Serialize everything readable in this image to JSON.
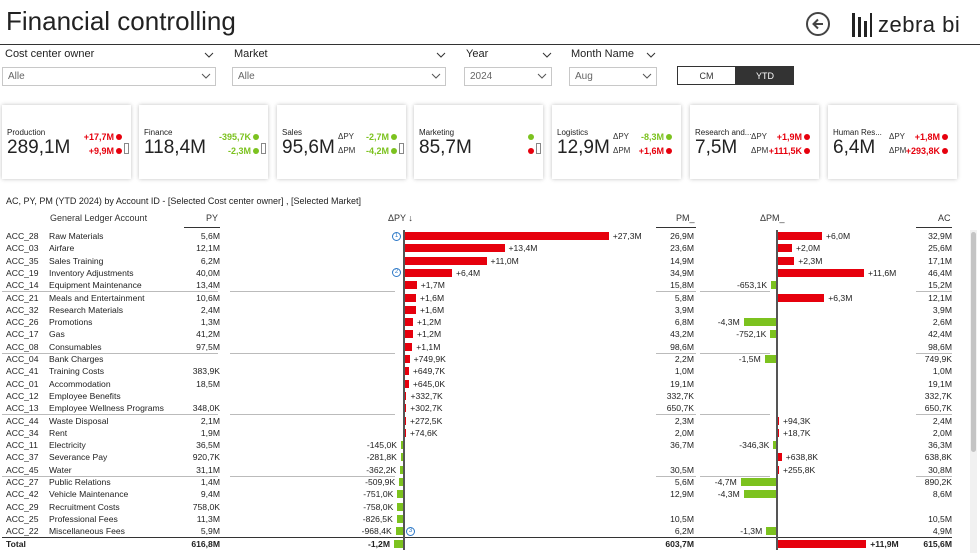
{
  "header": {
    "title": "Financial controlling",
    "logo_text": "zebra bi"
  },
  "filters": [
    {
      "label": "Cost center owner",
      "value": "Alle"
    },
    {
      "label": "Market",
      "value": "Alle"
    },
    {
      "label": "Year",
      "value": "2024"
    },
    {
      "label": "Month Name",
      "value": "Aug"
    }
  ],
  "segments": [
    {
      "label": "CM",
      "active": false
    },
    {
      "label": "YTD",
      "active": true
    }
  ],
  "cards": [
    {
      "name": "Production",
      "value": "289,1M",
      "d1": "+17,7M",
      "d2": "+9,9M",
      "d1_neg": true,
      "d2_neg": true,
      "show_labels": false
    },
    {
      "name": "Finance",
      "value": "118,4M",
      "d1": "-395,7K",
      "d2": "-2,3M",
      "d1_neg": false,
      "d2_neg": false,
      "show_labels": false
    },
    {
      "name": "Sales",
      "value": "95,6M",
      "d1": "-2,7M",
      "d2": "-4,2M",
      "d1_neg": false,
      "d2_neg": false,
      "show_labels": true,
      "l1": "ΔPY",
      "l2": "ΔPM"
    },
    {
      "name": "Marketing",
      "value": "85,7M",
      "d1": "",
      "d2": "",
      "d1_neg": false,
      "d2_neg": true,
      "show_labels": false
    },
    {
      "name": "Logistics",
      "value": "12,9M",
      "d1": "-8,3M",
      "d2": "+1,6M",
      "d1_neg": false,
      "d2_neg": true,
      "show_labels": true,
      "l1": "ΔPY",
      "l2": "ΔPM"
    },
    {
      "name": "Research and...",
      "value": "7,5M",
      "d1": "+1,9M",
      "d2": "+111,5K",
      "d1_neg": true,
      "d2_neg": true,
      "show_labels": true,
      "l1": "ΔPY",
      "l2": "ΔPM"
    },
    {
      "name": "Human Res...",
      "value": "6,4M",
      "d1": "+1,8M",
      "d2": "+293,8K",
      "d1_neg": true,
      "d2_neg": true,
      "show_labels": true,
      "l1": "ΔPY",
      "l2": "ΔPM"
    }
  ],
  "table": {
    "title": "AC, PY, PM (YTD 2024) by Account ID - [Selected Cost center owner] , [Selected Market]",
    "headers": {
      "account": "General Ledger Account",
      "py": "PY",
      "dpy": "ΔPY ↓",
      "pm": "PM_",
      "dpm": "ΔPM_",
      "ac": "AC"
    },
    "rows": [
      {
        "id": "ACC_28",
        "name": "Raw Materials",
        "py": "5,6M",
        "dpy": "+27,3M",
        "dpy_v": 27.3,
        "pm": "26,9M",
        "dpm": "+6,0M",
        "dpm_v": 6.0,
        "ac": "32,9M"
      },
      {
        "id": "ACC_03",
        "name": "Airfare",
        "py": "12,1M",
        "dpy": "+13,4M",
        "dpy_v": 13.4,
        "pm": "23,6M",
        "dpm": "+2,0M",
        "dpm_v": 2.0,
        "ac": "25,6M"
      },
      {
        "id": "ACC_35",
        "name": "Sales Training",
        "py": "6,2M",
        "dpy": "+11,0M",
        "dpy_v": 11.0,
        "pm": "14,9M",
        "dpm": "+2,3M",
        "dpm_v": 2.3,
        "ac": "17,1M"
      },
      {
        "id": "ACC_19",
        "name": "Inventory Adjustments",
        "py": "40,0M",
        "dpy": "+6,4M",
        "dpy_v": 6.4,
        "pm": "34,9M",
        "dpm": "+11,6M",
        "dpm_v": 11.6,
        "ac": "46,4M"
      },
      {
        "id": "ACC_14",
        "name": "Equipment Maintenance",
        "py": "13,4M",
        "dpy": "+1,7M",
        "dpy_v": 1.7,
        "pm": "15,8M",
        "dpm": "-653,1K",
        "dpm_v": -0.653,
        "ac": "15,2M"
      },
      {
        "id": "ACC_21",
        "name": "Meals and Entertainment",
        "py": "10,6M",
        "dpy": "+1,6M",
        "dpy_v": 1.6,
        "pm": "5,8M",
        "dpm": "+6,3M",
        "dpm_v": 6.3,
        "ac": "12,1M"
      },
      {
        "id": "ACC_32",
        "name": "Research Materials",
        "py": "2,4M",
        "dpy": "+1,6M",
        "dpy_v": 1.6,
        "pm": "3,9M",
        "dpm": "",
        "dpm_v": 0,
        "ac": "3,9M"
      },
      {
        "id": "ACC_26",
        "name": "Promotions",
        "py": "1,3M",
        "dpy": "+1,2M",
        "dpy_v": 1.2,
        "pm": "6,8M",
        "dpm": "-4,3M",
        "dpm_v": -4.3,
        "ac": "2,6M"
      },
      {
        "id": "ACC_17",
        "name": "Gas",
        "py": "41,2M",
        "dpy": "+1,2M",
        "dpy_v": 1.2,
        "pm": "43,2M",
        "dpm": "-752,1K",
        "dpm_v": -0.752,
        "ac": "42,4M"
      },
      {
        "id": "ACC_08",
        "name": "Consumables",
        "py": "97,5M",
        "dpy": "+1,1M",
        "dpy_v": 1.1,
        "pm": "98,6M",
        "dpm": "",
        "dpm_v": 0,
        "ac": "98,6M"
      },
      {
        "id": "ACC_04",
        "name": "Bank Charges",
        "py": "",
        "dpy": "+749,9K",
        "dpy_v": 0.75,
        "pm": "2,2M",
        "dpm": "-1,5M",
        "dpm_v": -1.5,
        "ac": "749,9K"
      },
      {
        "id": "ACC_41",
        "name": "Training Costs",
        "py": "383,9K",
        "dpy": "+649,7K",
        "dpy_v": 0.65,
        "pm": "1,0M",
        "dpm": "",
        "dpm_v": 0,
        "ac": "1,0M"
      },
      {
        "id": "ACC_01",
        "name": "Accommodation",
        "py": "18,5M",
        "dpy": "+645,0K",
        "dpy_v": 0.645,
        "pm": "19,1M",
        "dpm": "",
        "dpm_v": 0,
        "ac": "19,1M"
      },
      {
        "id": "ACC_12",
        "name": "Employee Benefits",
        "py": "",
        "dpy": "+332,7K",
        "dpy_v": 0.333,
        "pm": "332,7K",
        "dpm": "",
        "dpm_v": 0,
        "ac": "332,7K"
      },
      {
        "id": "ACC_13",
        "name": "Employee Wellness Programs",
        "py": "348,0K",
        "dpy": "+302,7K",
        "dpy_v": 0.303,
        "pm": "650,7K",
        "dpm": "",
        "dpm_v": 0,
        "ac": "650,7K"
      },
      {
        "id": "ACC_44",
        "name": "Waste Disposal",
        "py": "2,1M",
        "dpy": "+272,5K",
        "dpy_v": 0.273,
        "pm": "2,3M",
        "dpm": "+94,3K",
        "dpm_v": 0.094,
        "ac": "2,4M"
      },
      {
        "id": "ACC_34",
        "name": "Rent",
        "py": "1,9M",
        "dpy": "+74,6K",
        "dpy_v": 0.075,
        "pm": "2,0M",
        "dpm": "+18,7K",
        "dpm_v": 0.019,
        "ac": "2,0M"
      },
      {
        "id": "ACC_11",
        "name": "Electricity",
        "py": "36,5M",
        "dpy": "-145,0K",
        "dpy_v": -0.145,
        "pm": "36,7M",
        "dpm": "-346,3K",
        "dpm_v": -0.346,
        "ac": "36,3M"
      },
      {
        "id": "ACC_37",
        "name": "Severance Pay",
        "py": "920,7K",
        "dpy": "-281,8K",
        "dpy_v": -0.282,
        "pm": "",
        "dpm": "+638,8K",
        "dpm_v": 0.639,
        "ac": "638,8K"
      },
      {
        "id": "ACC_45",
        "name": "Water",
        "py": "31,1M",
        "dpy": "-362,2K",
        "dpy_v": -0.362,
        "pm": "30,5M",
        "dpm": "+255,8K",
        "dpm_v": 0.256,
        "ac": "30,8M"
      },
      {
        "id": "ACC_27",
        "name": "Public Relations",
        "py": "1,4M",
        "dpy": "-509,9K",
        "dpy_v": -0.51,
        "pm": "5,6M",
        "dpm": "-4,7M",
        "dpm_v": -4.7,
        "ac": "890,2K"
      },
      {
        "id": "ACC_42",
        "name": "Vehicle Maintenance",
        "py": "9,4M",
        "dpy": "-751,0K",
        "dpy_v": -0.751,
        "pm": "12,9M",
        "dpm": "-4,3M",
        "dpm_v": -4.3,
        "ac": "8,6M"
      },
      {
        "id": "ACC_29",
        "name": "Recruitment Costs",
        "py": "758,0K",
        "dpy": "-758,0K",
        "dpy_v": -0.758,
        "pm": "",
        "dpm": "",
        "dpm_v": 0,
        "ac": ""
      },
      {
        "id": "ACC_25",
        "name": "Professional Fees",
        "py": "11,3M",
        "dpy": "-826,5K",
        "dpy_v": -0.827,
        "pm": "10,5M",
        "dpm": "",
        "dpm_v": 0,
        "ac": "10,5M"
      },
      {
        "id": "ACC_22",
        "name": "Miscellaneous Fees",
        "py": "5,9M",
        "dpy": "-968,4K",
        "dpy_v": -0.968,
        "pm": "6,2M",
        "dpm": "-1,3M",
        "dpm_v": -1.3,
        "ac": "4,9M"
      }
    ],
    "total": {
      "id": "Total",
      "py": "616,8M",
      "dpy": "-1,2M",
      "dpy_v": -1.2,
      "pm": "603,7M",
      "dpm": "+11,9M",
      "dpm_v": 11.9,
      "ac": "615,6M"
    },
    "markers": [
      {
        "row": 0,
        "label": "1"
      },
      {
        "row": 3,
        "label": "2"
      },
      {
        "row": 24,
        "label": "3"
      }
    ]
  },
  "colors": {
    "negative": "#e6000d",
    "positive": "#7cc21f"
  }
}
